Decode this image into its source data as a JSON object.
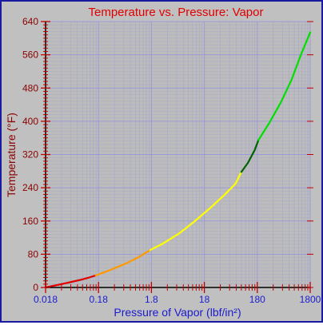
{
  "chart_data": {
    "type": "line",
    "title": "Temperature vs. Pressure: Vapor",
    "xlabel": "Pressure of Vapor (lbf/in²)",
    "ylabel": "Temperature (°F)",
    "x_scale": "log",
    "xlim": [
      0.018,
      1800
    ],
    "ylim": [
      0,
      640
    ],
    "x_ticks": [
      "0.018",
      "0.18",
      "1.8",
      "18",
      "180",
      "1800"
    ],
    "y_ticks": [
      "0",
      "80",
      "160",
      "240",
      "320",
      "400",
      "480",
      "560",
      "640"
    ],
    "grid": true,
    "series": [
      {
        "color": "#e00000",
        "points": [
          [
            0.018,
            0
          ],
          [
            0.03,
            6
          ],
          [
            0.05,
            12
          ],
          [
            0.08,
            18
          ],
          [
            0.12,
            24
          ],
          [
            0.16,
            29
          ]
        ]
      },
      {
        "color": "#ff9900",
        "points": [
          [
            0.16,
            29
          ],
          [
            0.3,
            42
          ],
          [
            0.6,
            58
          ],
          [
            1.0,
            72
          ],
          [
            1.7,
            90
          ]
        ]
      },
      {
        "color": "#ffff00",
        "points": [
          [
            1.7,
            90
          ],
          [
            3,
            106
          ],
          [
            6,
            130
          ],
          [
            12,
            160
          ],
          [
            25,
            195
          ],
          [
            45,
            225
          ],
          [
            70,
            250
          ],
          [
            90,
            278
          ]
        ]
      },
      {
        "color": "#006400",
        "points": [
          [
            90,
            278
          ],
          [
            120,
            300
          ],
          [
            160,
            330
          ],
          [
            190,
            355
          ]
        ]
      },
      {
        "color": "#00e000",
        "points": [
          [
            190,
            355
          ],
          [
            300,
            395
          ],
          [
            500,
            445
          ],
          [
            800,
            500
          ],
          [
            1200,
            560
          ],
          [
            1800,
            614
          ]
        ]
      }
    ]
  }
}
